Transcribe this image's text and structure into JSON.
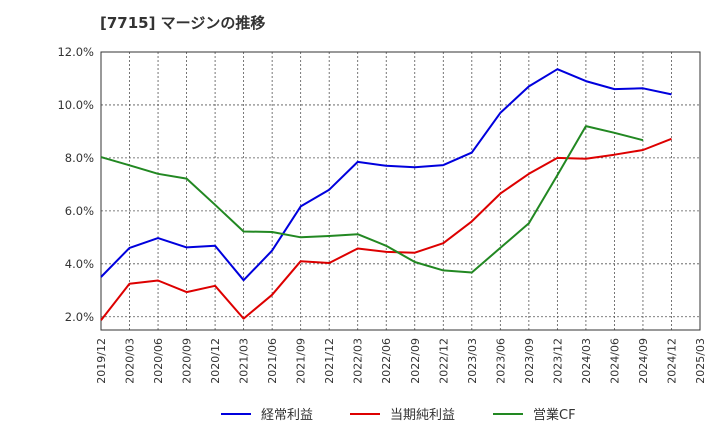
{
  "chart_data": {
    "type": "line",
    "title": "[7715]  マージンの推移",
    "xlabel": "",
    "ylabel": "",
    "ylim": [
      1.5,
      12.0
    ],
    "grid": true,
    "legend_position": "bottom",
    "yticks": [
      {
        "value": 2.0,
        "label": "2.0%"
      },
      {
        "value": 4.0,
        "label": "4.0%"
      },
      {
        "value": 6.0,
        "label": "6.0%"
      },
      {
        "value": 8.0,
        "label": "8.0%"
      },
      {
        "value": 10.0,
        "label": "10.0%"
      },
      {
        "value": 12.0,
        "label": "12.0%"
      }
    ],
    "categories": [
      "2019/12",
      "2020/03",
      "2020/06",
      "2020/09",
      "2020/12",
      "2021/03",
      "2021/06",
      "2021/09",
      "2021/12",
      "2022/03",
      "2022/06",
      "2022/09",
      "2022/12",
      "2023/03",
      "2023/06",
      "2023/09",
      "2023/12",
      "2024/03",
      "2024/06",
      "2024/09",
      "2024/12",
      "2025/03"
    ],
    "series": [
      {
        "name": "経常利益",
        "color": "#0000dd",
        "values": [
          3.5,
          4.6,
          4.97,
          4.62,
          4.68,
          3.38,
          4.5,
          6.17,
          6.8,
          7.85,
          7.7,
          7.65,
          7.73,
          8.2,
          9.7,
          10.7,
          11.35,
          10.9,
          10.6,
          10.63,
          10.4,
          null
        ]
      },
      {
        "name": "当期純利益",
        "color": "#dd0000",
        "values": [
          1.87,
          3.25,
          3.37,
          2.93,
          3.17,
          1.93,
          2.83,
          4.1,
          4.03,
          4.58,
          4.45,
          4.42,
          4.78,
          5.6,
          6.65,
          7.4,
          8.0,
          7.97,
          8.12,
          8.3,
          8.72,
          null
        ]
      },
      {
        "name": "営業CF",
        "color": "#228822",
        "values": [
          8.03,
          7.72,
          7.4,
          7.22,
          6.23,
          5.22,
          5.2,
          5.0,
          5.05,
          5.12,
          4.68,
          4.07,
          3.75,
          3.67,
          4.6,
          5.53,
          7.35,
          9.2,
          8.95,
          8.67,
          null,
          null
        ]
      }
    ]
  }
}
